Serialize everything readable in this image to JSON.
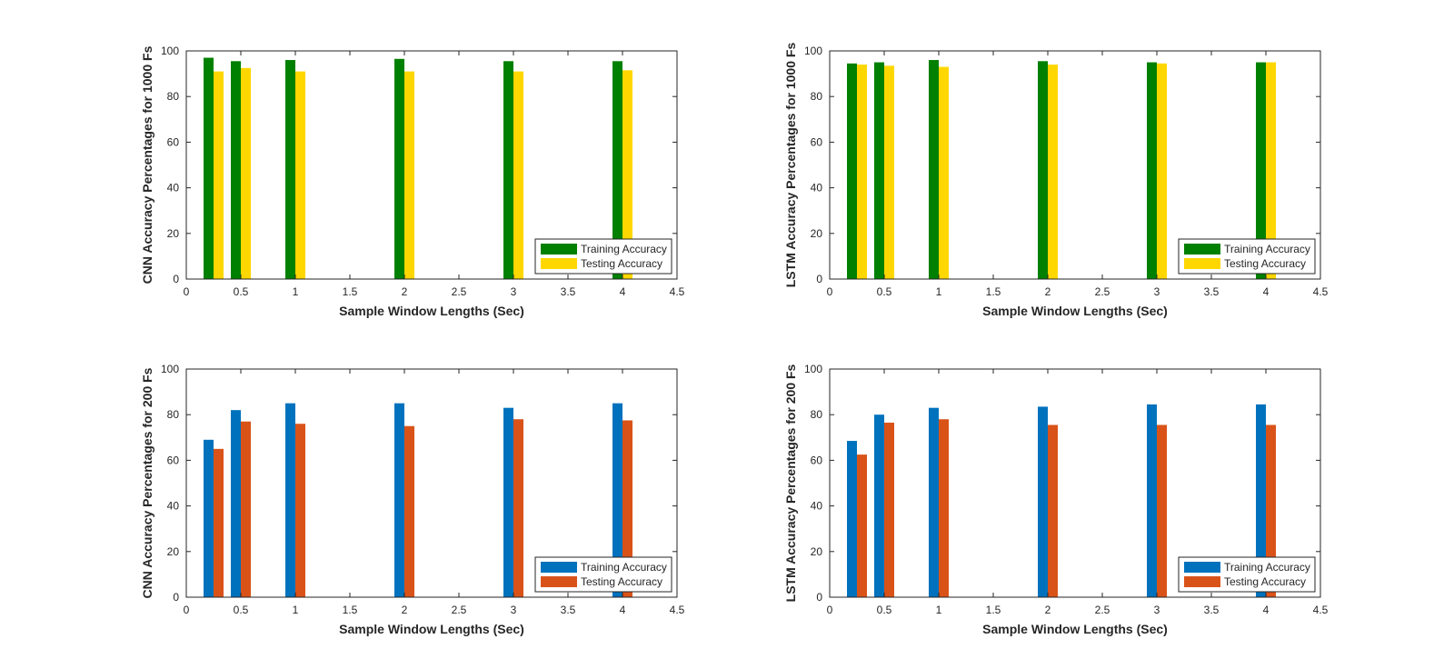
{
  "chart_data": [
    {
      "type": "bar",
      "title": "",
      "xlabel": "Sample Window Lengths (Sec)",
      "ylabel": "CNN Accuracy Percentages for 1000 Fs",
      "xlim": [
        0,
        4.5
      ],
      "ylim": [
        0,
        100
      ],
      "xticks": [
        "0",
        "0.5",
        "1",
        "1.5",
        "2",
        "2.5",
        "3",
        "3.5",
        "4",
        "4.5"
      ],
      "yticks": [
        "0",
        "20",
        "40",
        "60",
        "80",
        "100"
      ],
      "x": [
        0.25,
        0.5,
        1,
        2,
        3,
        4
      ],
      "series": [
        {
          "name": "Training Accuracy",
          "color": "#008000",
          "values": [
            97,
            95.5,
            96,
            96.5,
            95.5,
            95.5
          ]
        },
        {
          "name": "Testing Accuracy",
          "color": "#FFD700",
          "values": [
            91,
            92.5,
            91,
            91,
            91,
            91.5
          ]
        }
      ],
      "legend": "bottom-right",
      "grid": false
    },
    {
      "type": "bar",
      "title": "",
      "xlabel": "Sample Window Lengths (Sec)",
      "ylabel": "LSTM Accuracy Percentages for 1000 Fs",
      "xlim": [
        0,
        4.5
      ],
      "ylim": [
        0,
        100
      ],
      "xticks": [
        "0",
        "0.5",
        "1",
        "1.5",
        "2",
        "2.5",
        "3",
        "3.5",
        "4",
        "4.5"
      ],
      "yticks": [
        "0",
        "20",
        "40",
        "60",
        "80",
        "100"
      ],
      "x": [
        0.25,
        0.5,
        1,
        2,
        3,
        4
      ],
      "series": [
        {
          "name": "Training Accuracy",
          "color": "#008000",
          "values": [
            94.5,
            95,
            96,
            95.5,
            95,
            95
          ]
        },
        {
          "name": "Testing Accuracy",
          "color": "#FFD700",
          "values": [
            94,
            93.5,
            93,
            94,
            94.5,
            95
          ]
        }
      ],
      "legend": "bottom-right",
      "grid": false
    },
    {
      "type": "bar",
      "title": "",
      "xlabel": "Sample Window Lengths (Sec)",
      "ylabel": "CNN Accuracy Percentages for 200 Fs",
      "xlim": [
        0,
        4.5
      ],
      "ylim": [
        0,
        100
      ],
      "xticks": [
        "0",
        "0.5",
        "1",
        "1.5",
        "2",
        "2.5",
        "3",
        "3.5",
        "4",
        "4.5"
      ],
      "yticks": [
        "0",
        "20",
        "40",
        "60",
        "80",
        "100"
      ],
      "x": [
        0.25,
        0.5,
        1,
        2,
        3,
        4
      ],
      "series": [
        {
          "name": "Training Accuracy",
          "color": "#0072BD",
          "values": [
            69,
            82,
            85,
            85,
            83,
            85
          ]
        },
        {
          "name": "Testing Accuracy",
          "color": "#D95319",
          "values": [
            65,
            77,
            76,
            75,
            78,
            77.5
          ]
        }
      ],
      "legend": "bottom-right",
      "grid": false
    },
    {
      "type": "bar",
      "title": "",
      "xlabel": "Sample Window Lengths (Sec)",
      "ylabel": "LSTM Accuracy Percentages for 200 Fs",
      "xlim": [
        0,
        4.5
      ],
      "ylim": [
        0,
        100
      ],
      "xticks": [
        "0",
        "0.5",
        "1",
        "1.5",
        "2",
        "2.5",
        "3",
        "3.5",
        "4",
        "4.5"
      ],
      "yticks": [
        "0",
        "20",
        "40",
        "60",
        "80",
        "100"
      ],
      "x": [
        0.25,
        0.5,
        1,
        2,
        3,
        4
      ],
      "series": [
        {
          "name": "Training Accuracy",
          "color": "#0072BD",
          "values": [
            68.5,
            80,
            83,
            83.5,
            84.5,
            84.5
          ]
        },
        {
          "name": "Testing Accuracy",
          "color": "#D95319",
          "values": [
            62.5,
            76.5,
            78,
            75.5,
            75.5,
            75.5
          ]
        }
      ],
      "legend": "bottom-right",
      "grid": false
    }
  ]
}
